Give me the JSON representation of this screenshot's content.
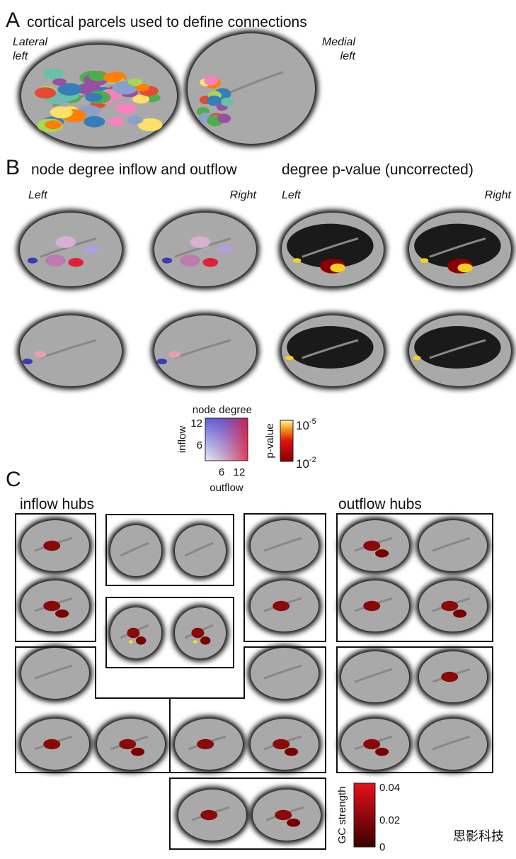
{
  "panel_a": {
    "letter": "A",
    "title": "cortical parcels used to define connections",
    "label_left": [
      "Lateral",
      "left"
    ],
    "label_right": [
      "Medial",
      "left"
    ]
  },
  "panel_b": {
    "letter": "B",
    "title_left": "node degree inflow and outflow",
    "title_right": "degree p-value (uncorrected)",
    "side_labels": [
      "Left",
      "Right",
      "Left",
      "Right"
    ],
    "degree_legend": {
      "title": "node degree",
      "y_label": "inflow",
      "x_label": "outflow",
      "y_ticks": [
        12,
        6
      ],
      "x_ticks": [
        6,
        12
      ]
    },
    "pvalue_legend": {
      "label": "p-value",
      "ticks": [
        {
          "base": "10",
          "exponent": "-5"
        },
        {
          "base": "10",
          "exponent": "-2"
        }
      ]
    }
  },
  "panel_c": {
    "letter": "C",
    "title_left": "inflow hubs",
    "title_right": "outflow hubs",
    "colorbar": {
      "label": "GC strength",
      "ticks": [
        0.04,
        0.02,
        0
      ]
    }
  },
  "watermark": "思影科技"
}
